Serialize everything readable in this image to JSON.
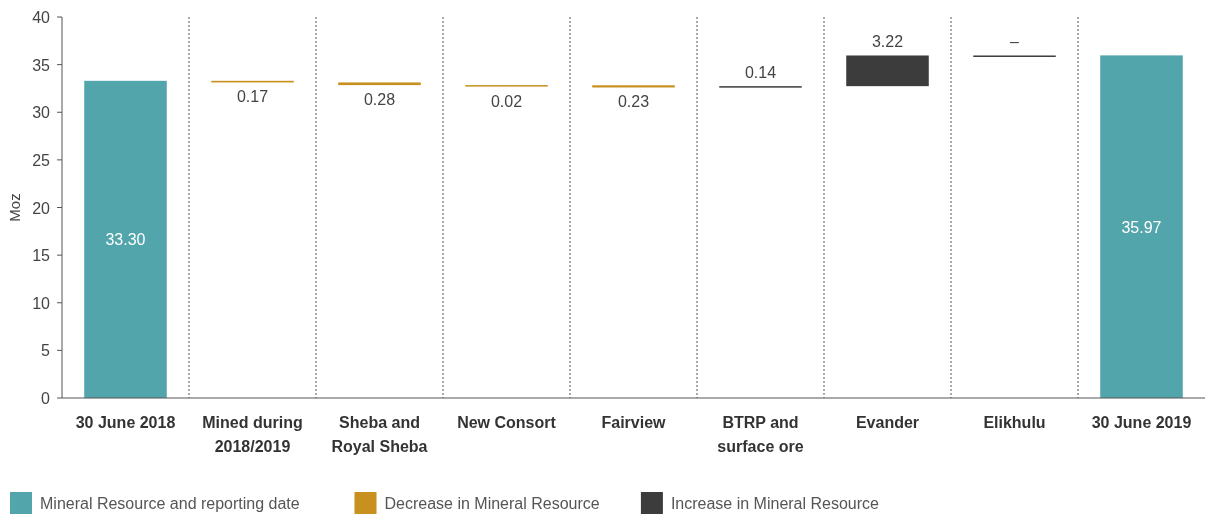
{
  "chart_data": {
    "type": "bar",
    "ylabel": "Moz",
    "categories": [
      "30 June 2018",
      "Mined during 2018/2019",
      "Sheba and Royal Sheba",
      "New Consort",
      "Fairview",
      "BTRP and surface ore",
      "Evander",
      "Elikhulu",
      "30 June 2019"
    ],
    "series": [
      {
        "name": "Mineral Resource and reporting date",
        "color": "#52a5ab",
        "values": [
          33.3,
          null,
          null,
          null,
          null,
          null,
          null,
          null,
          35.97
        ],
        "base": [
          0,
          null,
          null,
          null,
          null,
          null,
          null,
          null,
          0
        ],
        "value_labels": [
          "33.30",
          null,
          null,
          null,
          null,
          null,
          null,
          null,
          "35.97"
        ]
      },
      {
        "name": "Decrease in Mineral Resource",
        "color": "#c8901e",
        "values": [
          null,
          0.17,
          0.28,
          0.02,
          0.23,
          null,
          null,
          null,
          null
        ],
        "base": [
          null,
          33.13,
          32.85,
          32.83,
          32.6,
          null,
          null,
          null,
          null
        ],
        "value_labels": [
          null,
          "0.17",
          "0.28",
          "0.02",
          "0.23",
          null,
          null,
          null,
          null
        ]
      },
      {
        "name": "Increase in Mineral Resource",
        "color": "#3c3c3c",
        "values": [
          null,
          null,
          null,
          null,
          null,
          0.14,
          3.22,
          0,
          null
        ],
        "base": [
          null,
          null,
          null,
          null,
          null,
          32.6,
          32.74,
          35.96,
          null
        ],
        "value_labels": [
          null,
          null,
          null,
          null,
          null,
          "0.14",
          "3.22",
          "–",
          null
        ]
      }
    ],
    "ylim": [
      0,
      40
    ],
    "yticks": [
      0,
      5,
      10,
      15,
      20,
      25,
      30,
      35,
      40
    ],
    "grid": "x",
    "legend": "bottom"
  }
}
